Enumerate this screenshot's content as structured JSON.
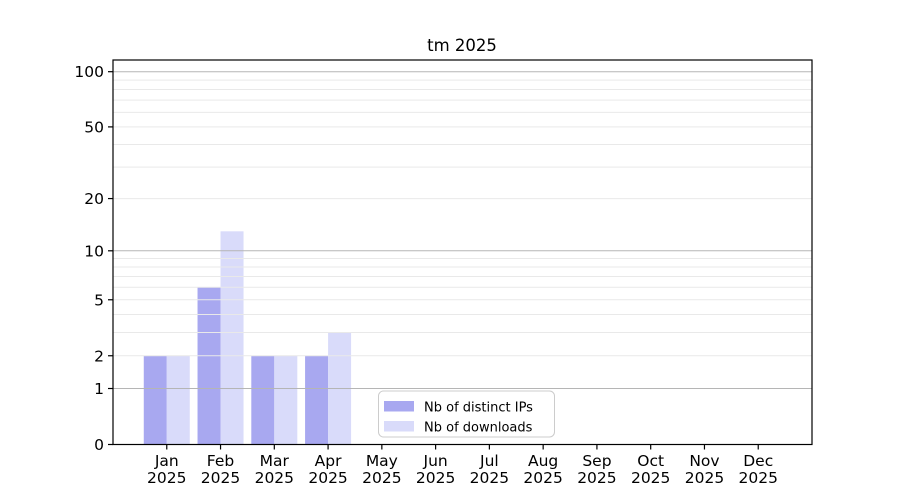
{
  "chart_data": {
    "type": "bar",
    "title": "tm 2025",
    "categories": [
      "Jan",
      "Feb",
      "Mar",
      "Apr",
      "May",
      "Jun",
      "Jul",
      "Aug",
      "Sep",
      "Oct",
      "Nov",
      "Dec"
    ],
    "year_label": "2025",
    "series": [
      {
        "name": "Nb of distinct IPs",
        "color": "#a8a8f0",
        "values": [
          2,
          6,
          2,
          2,
          0,
          0,
          0,
          0,
          0,
          0,
          0,
          0
        ]
      },
      {
        "name": "Nb of downloads",
        "color": "#d9dbfa",
        "values": [
          2,
          13,
          2,
          3,
          0,
          0,
          0,
          0,
          0,
          0,
          0,
          0
        ]
      }
    ],
    "yscale": "log1p",
    "ylim": [
      0,
      115
    ],
    "yticks": [
      0,
      1,
      2,
      5,
      10,
      20,
      50,
      100
    ],
    "grid": {
      "orientation": "horizontal",
      "major_values": [
        1,
        10,
        100
      ],
      "minor_values": [
        2,
        3,
        4,
        5,
        6,
        7,
        8,
        9,
        20,
        30,
        40,
        50,
        60,
        70,
        80,
        90
      ],
      "major_color": "#b5b5b5",
      "minor_color": "#e9e9e9",
      "on_top_of_bars": true
    },
    "legend": {
      "position": "lower center"
    },
    "axis_color": "#000000",
    "background_color": "#ffffff"
  }
}
